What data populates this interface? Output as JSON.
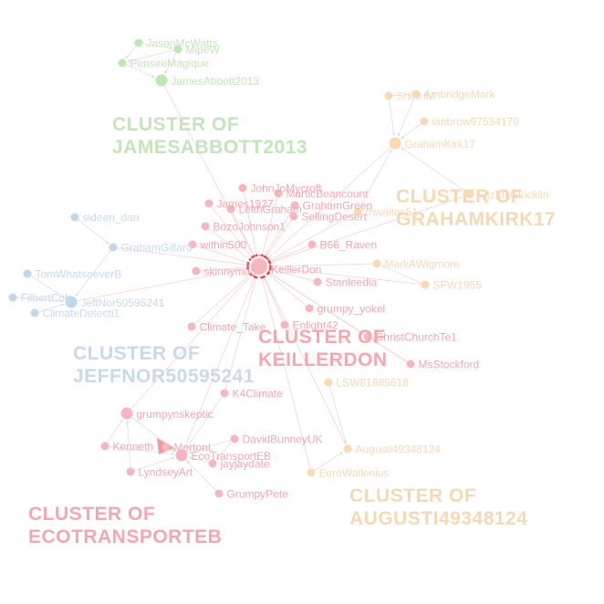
{
  "colors": {
    "pink": "#f5b7bd",
    "pink_text": "#f4a7ae",
    "red_edge": "#e8444f",
    "green": "#bfe6b6",
    "green_text": "#c4e4bc",
    "blue": "#c3d7ea",
    "blue_text": "#c8d9ea",
    "orange": "#f6dbb5",
    "orange_text": "#f3d9b6",
    "edge": "#d6d6d6"
  },
  "clusters": [
    {
      "id": "jamesabbott",
      "line1": "CLUSTER OF",
      "line2": "JAMESABBOTT2013",
      "color": "green"
    },
    {
      "id": "grahamkirk",
      "line1": "CLUSTER OF",
      "line2": "GRAHAMKIRK17",
      "color": "orange"
    },
    {
      "id": "jeffnor",
      "line1": "CLUSTER OF",
      "line2": "JEFFNOR50595241",
      "color": "blue"
    },
    {
      "id": "keillerdon",
      "line1": "CLUSTER OF",
      "line2": "KEILLERDON",
      "color": "pink"
    },
    {
      "id": "ecotransport",
      "line1": "CLUSTER OF",
      "line2": "ECOTRANSPORTEB",
      "color": "pink"
    },
    {
      "id": "augusti",
      "line1": "CLUSTER OF",
      "line2": "AUGUSTI49348124",
      "color": "orange"
    }
  ],
  "nodes": [
    {
      "id": "KeillerDon",
      "label": "KeillerDon",
      "color": "pink",
      "size": "hub"
    },
    {
      "id": "JasonMcWatts",
      "label": "JasonMcWatts",
      "color": "green"
    },
    {
      "id": "MipeW",
      "label": "MipeW",
      "color": "green"
    },
    {
      "id": "PenseeMagique",
      "label": "PenseeMagique",
      "color": "green"
    },
    {
      "id": "JamesAbbott2013",
      "label": "JamesAbbott2013",
      "color": "green",
      "size": "mid"
    },
    {
      "id": "ShinHM",
      "label": "ShinHM",
      "color": "orange"
    },
    {
      "id": "AmbridgeMark",
      "label": "AmbridgeMark",
      "color": "orange"
    },
    {
      "id": "ianbrow97534170",
      "label": "ianbrow97534170",
      "color": "orange"
    },
    {
      "id": "GrahamKirk17",
      "label": "GrahamKirk17",
      "color": "orange",
      "size": "mid"
    },
    {
      "id": "FitzMcGlocklin",
      "label": "FitzMcGlocklin",
      "color": "orange"
    },
    {
      "id": "thwaites",
      "label": "thwaites51",
      "color": "orange"
    },
    {
      "id": "MarkAWigmore",
      "label": "MarkAWigmore",
      "color": "orange"
    },
    {
      "id": "SFW1955",
      "label": "SFW1955",
      "color": "orange"
    },
    {
      "id": "LSW81885618",
      "label": "LSW81885618",
      "color": "orange"
    },
    {
      "id": "Augusti49348124",
      "label": "Augusti49348124",
      "color": "orange"
    },
    {
      "id": "EeroWallenius",
      "label": "EeroWallenius",
      "color": "orange"
    },
    {
      "id": "JohnJoMycroft",
      "label": "JohnJoMycroft",
      "color": "pink"
    },
    {
      "id": "MarticBeancount",
      "label": "MarticBeancount",
      "color": "pink"
    },
    {
      "id": "James1",
      "label": "James1927",
      "color": "pink"
    },
    {
      "id": "LeithGraham",
      "label": "LeithGraham",
      "color": "pink"
    },
    {
      "id": "GrahamGreen",
      "label": "GrahamGreen",
      "color": "pink"
    },
    {
      "id": "SellingDesert",
      "label": "SellingDesert",
      "color": "pink"
    },
    {
      "id": "BozoJohnson1",
      "label": "BozoJohnson1",
      "color": "pink"
    },
    {
      "id": "within500",
      "label": "within500",
      "color": "pink"
    },
    {
      "id": "B66_Raven",
      "label": "B66_Raven",
      "color": "pink"
    },
    {
      "id": "skinnymac",
      "label": "skinnymac",
      "color": "pink"
    },
    {
      "id": "Stanleedia",
      "label": "Stanleedia",
      "color": "pink"
    },
    {
      "id": "grumpy_yokel",
      "label": "grumpy_yokel",
      "color": "pink"
    },
    {
      "id": "Climate_Take",
      "label": "Climate_Take",
      "color": "pink"
    },
    {
      "id": "Enlight42",
      "label": "Enlight42",
      "color": "pink"
    },
    {
      "id": "ChristChurchTe1",
      "label": "ChristChurchTe1",
      "color": "pink"
    },
    {
      "id": "MsStockford",
      "label": "MsStockford",
      "color": "pink"
    },
    {
      "id": "K4Climate",
      "label": "K4Climate",
      "color": "pink"
    },
    {
      "id": "grumpynskeptic",
      "label": "grumpynskeptic",
      "color": "pink",
      "size": "mid"
    },
    {
      "id": "DavidBunneyUK",
      "label": "DavidBunneyUK",
      "color": "pink"
    },
    {
      "id": "Kenneth",
      "label": "Kenneth",
      "color": "pink"
    },
    {
      "id": "MortonL",
      "label": "MortonL",
      "color": "pink"
    },
    {
      "id": "EcoTransportEB",
      "label": "EcoTransportEB",
      "color": "pink",
      "size": "mid"
    },
    {
      "id": "LyndseyArt",
      "label": "LyndseyArt",
      "color": "pink"
    },
    {
      "id": "jayjaydate",
      "label": "jayjaydate",
      "color": "pink"
    },
    {
      "id": "GrumpyPete",
      "label": "GrumpyPete",
      "color": "pink"
    },
    {
      "id": "sideen_dan",
      "label": "sideen_dan",
      "color": "blue"
    },
    {
      "id": "GrahamGillard",
      "label": "GrahamGillard",
      "color": "blue"
    },
    {
      "id": "TomWhatsoeverB",
      "label": "TomWhatsoeverB",
      "color": "blue"
    },
    {
      "id": "FilbertCob",
      "label": "FilbertCob",
      "color": "blue"
    },
    {
      "id": "JeffNor50595241",
      "label": "JeffNor50595241",
      "color": "blue",
      "size": "mid"
    },
    {
      "id": "ClimateDetecti1",
      "label": "ClimateDetecti1",
      "color": "blue"
    }
  ],
  "edges": [
    [
      "JasonMcWatts",
      "MipeW"
    ],
    [
      "MipeW",
      "PenseeMagique"
    ],
    [
      "PenseeMagique",
      "JamesAbbott2013"
    ],
    [
      "JasonMcWatts",
      "PenseeMagique"
    ],
    [
      "MipeW",
      "JamesAbbott2013"
    ],
    [
      "JamesAbbott2013",
      "KeillerDon"
    ],
    [
      "ShinHM",
      "GrahamKirk17"
    ],
    [
      "AmbridgeMark",
      "GrahamKirk17"
    ],
    [
      "ianbrow97534170",
      "GrahamKirk17"
    ],
    [
      "ShinHM",
      "AmbridgeMark"
    ],
    [
      "GrahamKirk17",
      "KeillerDon"
    ],
    [
      "FitzMcGlocklin",
      "GrahamKirk17"
    ],
    [
      "thwaites",
      "GrahamKirk17"
    ],
    [
      "FitzMcGlocklin",
      "KeillerDon"
    ],
    [
      "MarkAWigmore",
      "KeillerDon"
    ],
    [
      "SFW1955",
      "MarkAWigmore"
    ],
    [
      "SFW1955",
      "KeillerDon"
    ],
    [
      "JohnJoMycroft",
      "KeillerDon"
    ],
    [
      "MarticBeancount",
      "KeillerDon"
    ],
    [
      "James1",
      "KeillerDon"
    ],
    [
      "LeithGraham",
      "KeillerDon"
    ],
    [
      "GrahamGreen",
      "KeillerDon"
    ],
    [
      "SellingDesert",
      "KeillerDon"
    ],
    [
      "BozoJohnson1",
      "KeillerDon"
    ],
    [
      "within500",
      "KeillerDon"
    ],
    [
      "B66_Raven",
      "KeillerDon"
    ],
    [
      "skinnymac",
      "KeillerDon"
    ],
    [
      "Stanleedia",
      "KeillerDon"
    ],
    [
      "grumpy_yokel",
      "KeillerDon"
    ],
    [
      "Climate_Take",
      "KeillerDon"
    ],
    [
      "Enlight42",
      "KeillerDon"
    ],
    [
      "ChristChurchTe1",
      "KeillerDon"
    ],
    [
      "MsStockford",
      "ChristChurchTe1"
    ],
    [
      "MsStockford",
      "KeillerDon"
    ],
    [
      "thwaites",
      "KeillerDon"
    ],
    [
      "K4Climate",
      "KeillerDon"
    ],
    [
      "grumpynskeptic",
      "KeillerDon"
    ],
    [
      "EcoTransportEB",
      "KeillerDon"
    ],
    [
      "LSW81885618",
      "Augusti49348124"
    ],
    [
      "EeroWallenius",
      "Augusti49348124"
    ],
    [
      "Augusti49348124",
      "KeillerDon"
    ],
    [
      "EeroWallenius",
      "KeillerDon"
    ],
    [
      "GrahamGillard",
      "KeillerDon"
    ],
    [
      "sideen_dan",
      "GrahamGillard"
    ],
    [
      "GrahamGillard",
      "JeffNor50595241"
    ],
    [
      "TomWhatsoeverB",
      "JeffNor50595241"
    ],
    [
      "FilbertCob",
      "JeffNor50595241"
    ],
    [
      "ClimateDetecti1",
      "JeffNor50595241"
    ],
    [
      "JeffNor50595241",
      "KeillerDon"
    ],
    [
      "grumpynskeptic",
      "EcoTransportEB"
    ],
    [
      "Kenneth",
      "EcoTransportEB"
    ],
    [
      "MortonL",
      "EcoTransportEB"
    ],
    [
      "LyndseyArt",
      "EcoTransportEB"
    ],
    [
      "jayjaydate",
      "EcoTransportEB"
    ],
    [
      "GrumpyPete",
      "EcoTransportEB"
    ],
    [
      "DavidBunneyUK",
      "EcoTransportEB"
    ],
    [
      "K4Climate",
      "EcoTransportEB"
    ],
    [
      "Kenneth",
      "grumpynskeptic"
    ],
    [
      "LyndseyArt",
      "grumpynskeptic"
    ],
    [
      "DavidBunneyUK",
      "jayjaydate"
    ]
  ]
}
